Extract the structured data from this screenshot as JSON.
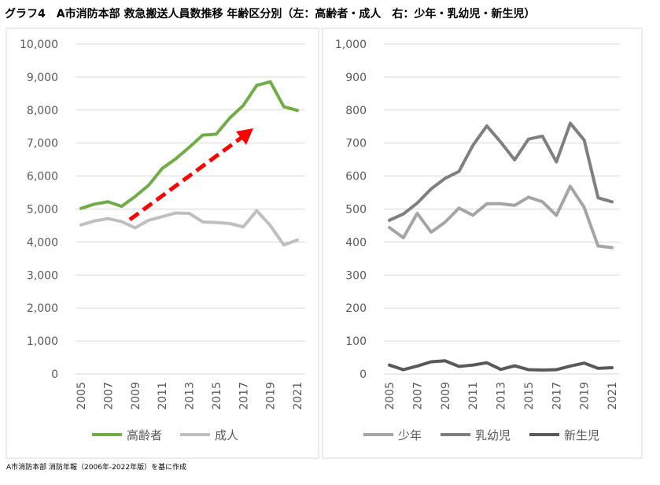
{
  "title": "グラフ4　A市消防本部 救急搬送人員数推移 年齢区分別（左：高齢者・成人　右：少年・乳幼児・新生児）",
  "footnote": "A市消防本部 消防年報（2006年-2022年版）を基に作成",
  "chart_data": [
    {
      "type": "line",
      "title": "",
      "x": [
        "2005",
        "2006",
        "2007",
        "2008",
        "2009",
        "2010",
        "2011",
        "2012",
        "2013",
        "2014",
        "2015",
        "2016",
        "2017",
        "2018",
        "2019",
        "2020",
        "2021"
      ],
      "x_tick_labels": [
        "2005",
        "2007",
        "2009",
        "2011",
        "2013",
        "2015",
        "2017",
        "2019",
        "2021"
      ],
      "ylim": [
        0,
        10000
      ],
      "y_tick_labels": [
        "0",
        "1,000",
        "2,000",
        "3,000",
        "4,000",
        "5,000",
        "6,000",
        "7,000",
        "8,000",
        "9,000",
        "10,000"
      ],
      "grid": true,
      "legend": "bottom",
      "annotation": "red dashed upward trend arrow",
      "series": [
        {
          "name": "高齢者",
          "color": "#70ad47",
          "values": [
            5020,
            5150,
            5220,
            5080,
            5380,
            5720,
            6230,
            6520,
            6870,
            7240,
            7270,
            7760,
            8140,
            8750,
            8860,
            8100,
            7990
          ]
        },
        {
          "name": "成人",
          "color": "#bfbfbf",
          "values": [
            4520,
            4640,
            4710,
            4620,
            4430,
            4660,
            4770,
            4880,
            4870,
            4610,
            4590,
            4560,
            4460,
            4950,
            4500,
            3910,
            4060
          ]
        }
      ]
    },
    {
      "type": "line",
      "title": "",
      "x": [
        "2005",
        "2006",
        "2007",
        "2008",
        "2009",
        "2010",
        "2011",
        "2012",
        "2013",
        "2014",
        "2015",
        "2016",
        "2017",
        "2018",
        "2019",
        "2020",
        "2021"
      ],
      "x_tick_labels": [
        "2005",
        "2007",
        "2009",
        "2011",
        "2013",
        "2015",
        "2017",
        "2019",
        "2021"
      ],
      "ylim": [
        0,
        1000
      ],
      "y_tick_labels": [
        "0",
        "100",
        "200",
        "300",
        "400",
        "500",
        "600",
        "700",
        "800",
        "900",
        "1,000"
      ],
      "grid": true,
      "legend": "bottom",
      "series": [
        {
          "name": "少年",
          "color": "#a5a5a5",
          "values": [
            444,
            413,
            487,
            430,
            460,
            503,
            481,
            516,
            516,
            511,
            536,
            522,
            481,
            569,
            505,
            388,
            383
          ]
        },
        {
          "name": "乳幼児",
          "color": "#7f7f7f",
          "values": [
            466,
            485,
            518,
            561,
            593,
            614,
            693,
            752,
            703,
            649,
            712,
            721,
            643,
            760,
            709,
            534,
            522
          ]
        },
        {
          "name": "新生児",
          "color": "#595959",
          "values": [
            27,
            13,
            24,
            37,
            40,
            23,
            27,
            34,
            14,
            25,
            13,
            12,
            13,
            24,
            33,
            17,
            19
          ]
        }
      ]
    }
  ]
}
